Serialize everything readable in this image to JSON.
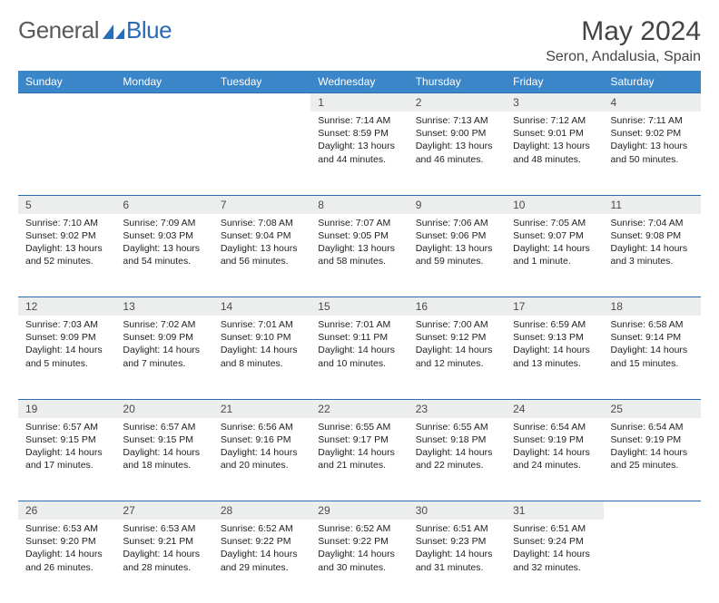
{
  "logo": {
    "text_gray": "General",
    "text_blue": "Blue"
  },
  "title": "May 2024",
  "location": "Seron, Andalusia, Spain",
  "colors": {
    "header_bg": "#3b86c8",
    "header_text": "#ffffff",
    "daynum_bg": "#eceded",
    "border": "#2a6cb5",
    "logo_gray": "#5a5a5a",
    "logo_blue": "#2a6cb5"
  },
  "weekdays": [
    "Sunday",
    "Monday",
    "Tuesday",
    "Wednesday",
    "Thursday",
    "Friday",
    "Saturday"
  ],
  "weeks": [
    [
      {
        "day": "",
        "sunrise": "",
        "sunset": "",
        "daylight": ""
      },
      {
        "day": "",
        "sunrise": "",
        "sunset": "",
        "daylight": ""
      },
      {
        "day": "",
        "sunrise": "",
        "sunset": "",
        "daylight": ""
      },
      {
        "day": "1",
        "sunrise": "Sunrise: 7:14 AM",
        "sunset": "Sunset: 8:59 PM",
        "daylight": "Daylight: 13 hours and 44 minutes."
      },
      {
        "day": "2",
        "sunrise": "Sunrise: 7:13 AM",
        "sunset": "Sunset: 9:00 PM",
        "daylight": "Daylight: 13 hours and 46 minutes."
      },
      {
        "day": "3",
        "sunrise": "Sunrise: 7:12 AM",
        "sunset": "Sunset: 9:01 PM",
        "daylight": "Daylight: 13 hours and 48 minutes."
      },
      {
        "day": "4",
        "sunrise": "Sunrise: 7:11 AM",
        "sunset": "Sunset: 9:02 PM",
        "daylight": "Daylight: 13 hours and 50 minutes."
      }
    ],
    [
      {
        "day": "5",
        "sunrise": "Sunrise: 7:10 AM",
        "sunset": "Sunset: 9:02 PM",
        "daylight": "Daylight: 13 hours and 52 minutes."
      },
      {
        "day": "6",
        "sunrise": "Sunrise: 7:09 AM",
        "sunset": "Sunset: 9:03 PM",
        "daylight": "Daylight: 13 hours and 54 minutes."
      },
      {
        "day": "7",
        "sunrise": "Sunrise: 7:08 AM",
        "sunset": "Sunset: 9:04 PM",
        "daylight": "Daylight: 13 hours and 56 minutes."
      },
      {
        "day": "8",
        "sunrise": "Sunrise: 7:07 AM",
        "sunset": "Sunset: 9:05 PM",
        "daylight": "Daylight: 13 hours and 58 minutes."
      },
      {
        "day": "9",
        "sunrise": "Sunrise: 7:06 AM",
        "sunset": "Sunset: 9:06 PM",
        "daylight": "Daylight: 13 hours and 59 minutes."
      },
      {
        "day": "10",
        "sunrise": "Sunrise: 7:05 AM",
        "sunset": "Sunset: 9:07 PM",
        "daylight": "Daylight: 14 hours and 1 minute."
      },
      {
        "day": "11",
        "sunrise": "Sunrise: 7:04 AM",
        "sunset": "Sunset: 9:08 PM",
        "daylight": "Daylight: 14 hours and 3 minutes."
      }
    ],
    [
      {
        "day": "12",
        "sunrise": "Sunrise: 7:03 AM",
        "sunset": "Sunset: 9:09 PM",
        "daylight": "Daylight: 14 hours and 5 minutes."
      },
      {
        "day": "13",
        "sunrise": "Sunrise: 7:02 AM",
        "sunset": "Sunset: 9:09 PM",
        "daylight": "Daylight: 14 hours and 7 minutes."
      },
      {
        "day": "14",
        "sunrise": "Sunrise: 7:01 AM",
        "sunset": "Sunset: 9:10 PM",
        "daylight": "Daylight: 14 hours and 8 minutes."
      },
      {
        "day": "15",
        "sunrise": "Sunrise: 7:01 AM",
        "sunset": "Sunset: 9:11 PM",
        "daylight": "Daylight: 14 hours and 10 minutes."
      },
      {
        "day": "16",
        "sunrise": "Sunrise: 7:00 AM",
        "sunset": "Sunset: 9:12 PM",
        "daylight": "Daylight: 14 hours and 12 minutes."
      },
      {
        "day": "17",
        "sunrise": "Sunrise: 6:59 AM",
        "sunset": "Sunset: 9:13 PM",
        "daylight": "Daylight: 14 hours and 13 minutes."
      },
      {
        "day": "18",
        "sunrise": "Sunrise: 6:58 AM",
        "sunset": "Sunset: 9:14 PM",
        "daylight": "Daylight: 14 hours and 15 minutes."
      }
    ],
    [
      {
        "day": "19",
        "sunrise": "Sunrise: 6:57 AM",
        "sunset": "Sunset: 9:15 PM",
        "daylight": "Daylight: 14 hours and 17 minutes."
      },
      {
        "day": "20",
        "sunrise": "Sunrise: 6:57 AM",
        "sunset": "Sunset: 9:15 PM",
        "daylight": "Daylight: 14 hours and 18 minutes."
      },
      {
        "day": "21",
        "sunrise": "Sunrise: 6:56 AM",
        "sunset": "Sunset: 9:16 PM",
        "daylight": "Daylight: 14 hours and 20 minutes."
      },
      {
        "day": "22",
        "sunrise": "Sunrise: 6:55 AM",
        "sunset": "Sunset: 9:17 PM",
        "daylight": "Daylight: 14 hours and 21 minutes."
      },
      {
        "day": "23",
        "sunrise": "Sunrise: 6:55 AM",
        "sunset": "Sunset: 9:18 PM",
        "daylight": "Daylight: 14 hours and 22 minutes."
      },
      {
        "day": "24",
        "sunrise": "Sunrise: 6:54 AM",
        "sunset": "Sunset: 9:19 PM",
        "daylight": "Daylight: 14 hours and 24 minutes."
      },
      {
        "day": "25",
        "sunrise": "Sunrise: 6:54 AM",
        "sunset": "Sunset: 9:19 PM",
        "daylight": "Daylight: 14 hours and 25 minutes."
      }
    ],
    [
      {
        "day": "26",
        "sunrise": "Sunrise: 6:53 AM",
        "sunset": "Sunset: 9:20 PM",
        "daylight": "Daylight: 14 hours and 26 minutes."
      },
      {
        "day": "27",
        "sunrise": "Sunrise: 6:53 AM",
        "sunset": "Sunset: 9:21 PM",
        "daylight": "Daylight: 14 hours and 28 minutes."
      },
      {
        "day": "28",
        "sunrise": "Sunrise: 6:52 AM",
        "sunset": "Sunset: 9:22 PM",
        "daylight": "Daylight: 14 hours and 29 minutes."
      },
      {
        "day": "29",
        "sunrise": "Sunrise: 6:52 AM",
        "sunset": "Sunset: 9:22 PM",
        "daylight": "Daylight: 14 hours and 30 minutes."
      },
      {
        "day": "30",
        "sunrise": "Sunrise: 6:51 AM",
        "sunset": "Sunset: 9:23 PM",
        "daylight": "Daylight: 14 hours and 31 minutes."
      },
      {
        "day": "31",
        "sunrise": "Sunrise: 6:51 AM",
        "sunset": "Sunset: 9:24 PM",
        "daylight": "Daylight: 14 hours and 32 minutes."
      },
      {
        "day": "",
        "sunrise": "",
        "sunset": "",
        "daylight": ""
      }
    ]
  ]
}
